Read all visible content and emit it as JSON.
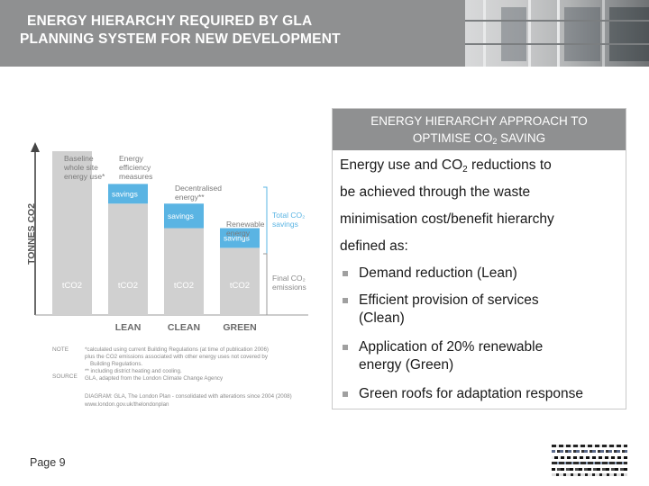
{
  "header": {
    "title_line1": "ENERGY HIERARCHY REQUIRED BY GLA",
    "title_line2": "PLANNING SYSTEM FOR NEW DEVELOPMENT"
  },
  "info_box": {
    "heading_line1": "ENERGY HIERARCHY APPROACH TO",
    "heading_line2_pre": "OPTIMISE CO",
    "heading_line2_sub": "2",
    "heading_line2_post": " SAVING",
    "body_l1_pre": "Energy use and CO",
    "body_l1_sub": "2",
    "body_l1_post": " reductions to",
    "body_l2": "be achieved through the waste",
    "body_l3": "minimisation cost/benefit hierarchy",
    "body_l4": "defined as:",
    "bullets": [
      {
        "l1": "Demand reduction (Lean)",
        "l2": ""
      },
      {
        "l1": "Efficient provision of services",
        "l2": "(Clean)"
      },
      {
        "l1": "Application of 20% renewable",
        "l2": "energy (Green)"
      },
      {
        "l1": "Green roofs for adaptation response",
        "l2": ""
      }
    ]
  },
  "footer": {
    "page": "Page 9"
  },
  "colors": {
    "header_bg": "#8f9091",
    "bar_gray": "#d0d0d0",
    "savings_blue": "#5ab4e3",
    "text_gray": "#6f6f6f"
  },
  "chart_data": {
    "type": "bar",
    "ylabel": "TONNES CO2",
    "categories": [
      "",
      "LEAN",
      "CLEAN",
      "GREEN"
    ],
    "column_top_labels": [
      "Baseline whole site energy use*",
      "Energy efficiency measures",
      "Decentralised energy**",
      "Renewable energy"
    ],
    "stack_series": [
      {
        "name": "tCO2",
        "values": [
          100,
          68,
          53,
          41
        ]
      },
      {
        "name": "savings",
        "values": [
          0,
          12,
          15,
          12
        ]
      }
    ],
    "bar_labels": [
      "tCO2",
      "tCO2",
      "tCO2",
      "tCO2"
    ],
    "savings_labels": [
      "savings",
      "savings",
      "savings"
    ],
    "annotations": [
      "Total CO2 savings",
      "Final CO2 emissions"
    ],
    "notes": {
      "note_label": "NOTE",
      "source_label": "SOURCE",
      "note_l1": "*calculated using current Building Regulations (at time of publication 2006)",
      "note_l2": "plus the CO2 emissions associated with other energy uses not covered by",
      "note_l3": "Building Regulations.",
      "note_l4": "** including district heating and cooling.",
      "source_l1": "GLA, adapted from the London Climate Change Agency",
      "diagram_l1": "DIAGRAM: GLA, The London Plan - consolidated with alterations since 2004 (2008)",
      "diagram_l2": "www.london.gov.uk/thelondonplan"
    }
  }
}
